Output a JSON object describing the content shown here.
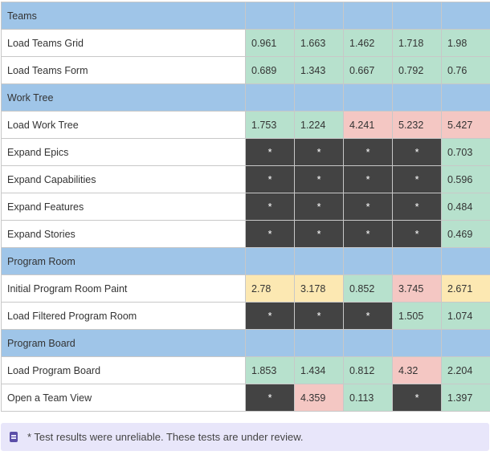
{
  "colors": {
    "section": "#9fc5e8",
    "good": "#b7e1cd",
    "bad": "#f4c7c3",
    "warn": "#fce8b2",
    "na": "#434343"
  },
  "rows": [
    {
      "type": "section",
      "label": "Teams"
    },
    {
      "type": "data",
      "label": "Load Teams Grid",
      "cells": [
        {
          "v": "0.961",
          "s": "good"
        },
        {
          "v": "1.663",
          "s": "good"
        },
        {
          "v": "1.462",
          "s": "good"
        },
        {
          "v": "1.718",
          "s": "good"
        },
        {
          "v": "1.98",
          "s": "good"
        }
      ]
    },
    {
      "type": "data",
      "label": "Load Teams Form",
      "cells": [
        {
          "v": "0.689",
          "s": "good"
        },
        {
          "v": "1.343",
          "s": "good"
        },
        {
          "v": "0.667",
          "s": "good"
        },
        {
          "v": "0.792",
          "s": "good"
        },
        {
          "v": "0.76",
          "s": "good"
        }
      ]
    },
    {
      "type": "section",
      "label": "Work Tree"
    },
    {
      "type": "data",
      "label": "Load Work Tree",
      "cells": [
        {
          "v": "1.753",
          "s": "good"
        },
        {
          "v": "1.224",
          "s": "good"
        },
        {
          "v": "4.241",
          "s": "bad"
        },
        {
          "v": "5.232",
          "s": "bad"
        },
        {
          "v": "5.427",
          "s": "bad"
        }
      ]
    },
    {
      "type": "data",
      "label": "Expand Epics",
      "cells": [
        {
          "v": "*",
          "s": "na"
        },
        {
          "v": "*",
          "s": "na"
        },
        {
          "v": "*",
          "s": "na"
        },
        {
          "v": "*",
          "s": "na"
        },
        {
          "v": "0.703",
          "s": "good"
        }
      ]
    },
    {
      "type": "data",
      "label": "Expand Capabilities",
      "cells": [
        {
          "v": "*",
          "s": "na"
        },
        {
          "v": "*",
          "s": "na"
        },
        {
          "v": "*",
          "s": "na"
        },
        {
          "v": "*",
          "s": "na"
        },
        {
          "v": "0.596",
          "s": "good"
        }
      ]
    },
    {
      "type": "data",
      "label": "Expand Features",
      "cells": [
        {
          "v": "*",
          "s": "na"
        },
        {
          "v": "*",
          "s": "na"
        },
        {
          "v": "*",
          "s": "na"
        },
        {
          "v": "*",
          "s": "na"
        },
        {
          "v": "0.484",
          "s": "good"
        }
      ]
    },
    {
      "type": "data",
      "label": "Expand Stories",
      "cells": [
        {
          "v": "*",
          "s": "na"
        },
        {
          "v": "*",
          "s": "na"
        },
        {
          "v": "*",
          "s": "na"
        },
        {
          "v": "*",
          "s": "na"
        },
        {
          "v": "0.469",
          "s": "good"
        }
      ]
    },
    {
      "type": "section",
      "label": "Program Room"
    },
    {
      "type": "data",
      "label": "Initial Program Room Paint",
      "cells": [
        {
          "v": "2.78",
          "s": "warn"
        },
        {
          "v": "3.178",
          "s": "warn"
        },
        {
          "v": "0.852",
          "s": "good"
        },
        {
          "v": "3.745",
          "s": "bad"
        },
        {
          "v": "2.671",
          "s": "warn"
        }
      ]
    },
    {
      "type": "data",
      "label": "Load Filtered Program Room",
      "cells": [
        {
          "v": "*",
          "s": "na"
        },
        {
          "v": "*",
          "s": "na"
        },
        {
          "v": "*",
          "s": "na"
        },
        {
          "v": "1.505",
          "s": "good"
        },
        {
          "v": "1.074",
          "s": "good"
        }
      ]
    },
    {
      "type": "section",
      "label": "Program Board"
    },
    {
      "type": "data",
      "label": "Load Program Board",
      "cells": [
        {
          "v": "1.853",
          "s": "good"
        },
        {
          "v": "1.434",
          "s": "good"
        },
        {
          "v": "0.812",
          "s": "good"
        },
        {
          "v": "4.32",
          "s": "bad"
        },
        {
          "v": "2.204",
          "s": "good"
        }
      ]
    },
    {
      "type": "data",
      "label": "Open a Team View",
      "cells": [
        {
          "v": "*",
          "s": "na"
        },
        {
          "v": "4.359",
          "s": "bad"
        },
        {
          "v": "0.113",
          "s": "good"
        },
        {
          "v": "*",
          "s": "na"
        },
        {
          "v": "1.397",
          "s": "good"
        }
      ]
    }
  ],
  "callout": {
    "icon": "note-icon",
    "text": "* Test results were unreliable. These tests are under review."
  }
}
